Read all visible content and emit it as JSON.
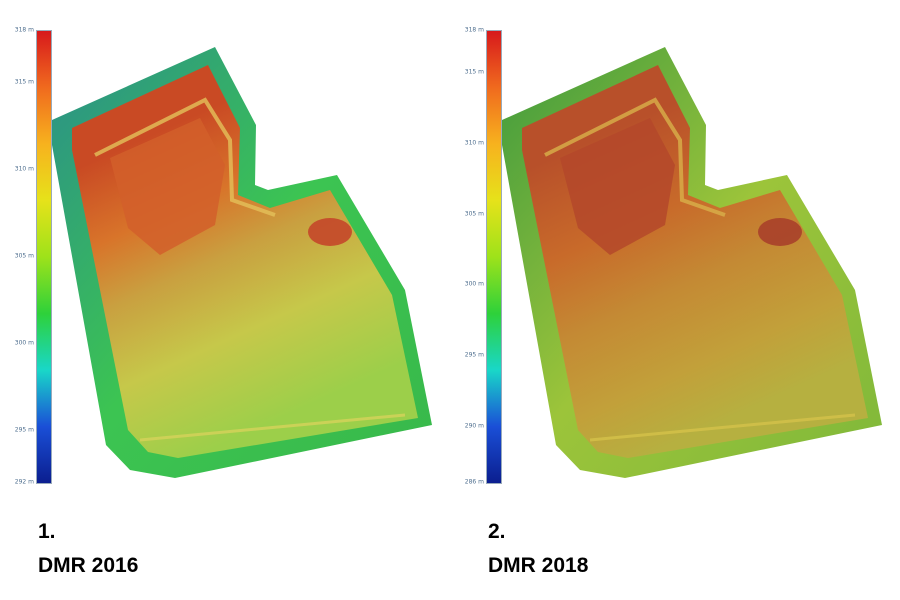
{
  "panels": [
    {
      "number": "1.",
      "title": "DMR 2016",
      "scale_ticks": [
        "318 m",
        "315 m",
        "310 m",
        "305 m",
        "300 m",
        "295 m",
        "292 m"
      ],
      "scale_values": [
        318,
        315,
        310,
        305,
        300,
        295,
        292
      ],
      "scale_min": 292,
      "scale_max": 318
    },
    {
      "number": "2.",
      "title": "DMR 2018",
      "scale_ticks": [
        "318 m",
        "315 m",
        "310 m",
        "305 m",
        "300 m",
        "295 m",
        "290 m",
        "286 m"
      ],
      "scale_values": [
        318,
        315,
        310,
        305,
        300,
        295,
        290,
        286
      ],
      "scale_min": 286,
      "scale_max": 318
    }
  ],
  "colors": {
    "scale_stops": [
      "#d7191c",
      "#f06a1e",
      "#f7b21e",
      "#e6e21a",
      "#9ee21a",
      "#2ed13a",
      "#19d7c8",
      "#1a4fd7",
      "#0b1e8f"
    ]
  }
}
